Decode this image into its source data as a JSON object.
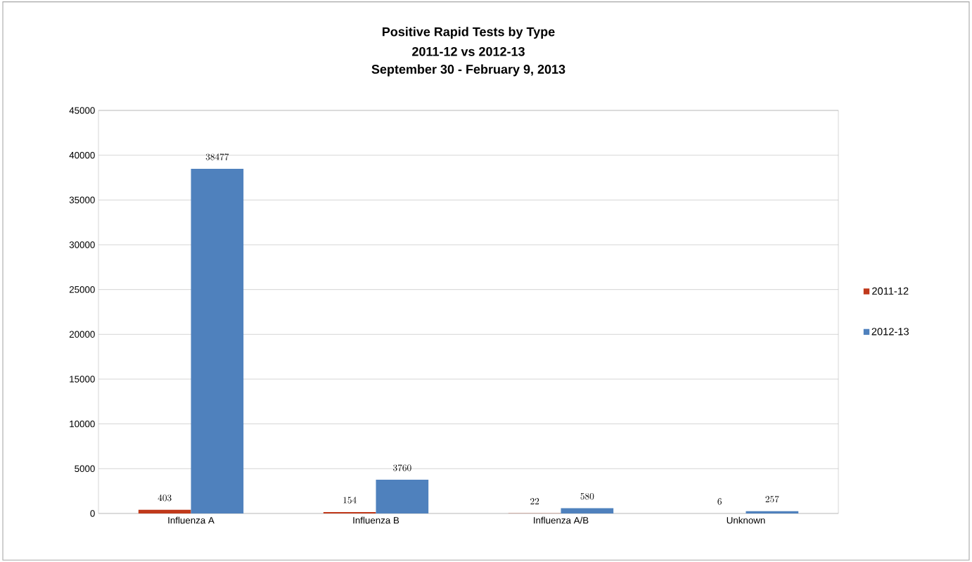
{
  "chart_data": {
    "type": "bar",
    "title": "Positive Rapid Tests by Type",
    "subtitle": "2011-12 vs 2012-13",
    "annotations": [
      "September 30 - February 9, 2013"
    ],
    "categories": [
      "Influenza A",
      "Influenza B",
      "Influenza A/B",
      "Unknown"
    ],
    "series": [
      {
        "name": "2011-12",
        "color": "#c0391b",
        "values": [
          403,
          154,
          22,
          6
        ]
      },
      {
        "name": "2012-13",
        "color": "#4f81bd",
        "values": [
          38477,
          3760,
          580,
          257
        ]
      }
    ],
    "ylim": [
      0,
      45000
    ],
    "yticks": [
      0,
      5000,
      10000,
      15000,
      20000,
      25000,
      30000,
      35000,
      40000,
      45000
    ],
    "grid": "y",
    "legend": "right",
    "data_labels": true
  }
}
